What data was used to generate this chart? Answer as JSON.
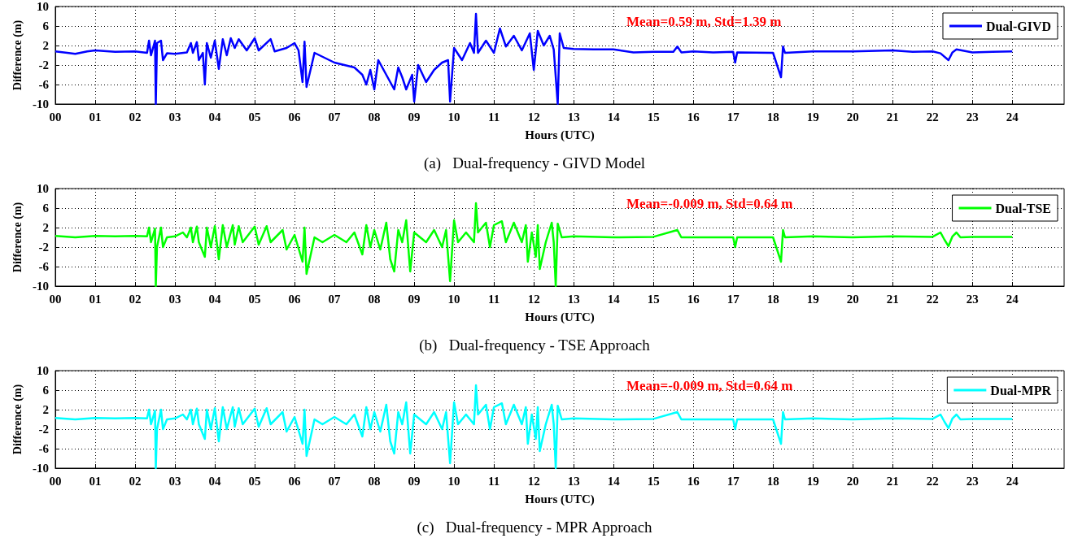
{
  "chart_data": [
    {
      "type": "line",
      "title": "(a)   Dual-frequency - GIVD Model",
      "xlabel": "Hours (UTC)",
      "ylabel": "Difference (m)",
      "annotations": [
        "Mean=0.59 m, Std=1.39 m"
      ],
      "grid": true,
      "legend": "top right",
      "xlim": [
        0,
        25.3
      ],
      "ylim": [
        -10,
        10
      ],
      "yticks": [
        -10,
        -6,
        -2,
        2,
        6,
        10
      ],
      "xticks": [
        {
          "value": 0,
          "label": "00"
        },
        {
          "value": 1,
          "label": "01"
        },
        {
          "value": 2,
          "label": "02"
        },
        {
          "value": 3,
          "label": "03"
        },
        {
          "value": 4,
          "label": "04"
        },
        {
          "value": 5,
          "label": "05"
        },
        {
          "value": 6,
          "label": "06"
        },
        {
          "value": 7,
          "label": "07"
        },
        {
          "value": 8,
          "label": "08"
        },
        {
          "value": 9,
          "label": "09"
        },
        10,
        11,
        12,
        13,
        14,
        15,
        16,
        17,
        18,
        19,
        20,
        21,
        22,
        23,
        24
      ],
      "series": [
        {
          "name": "Dual-GIVD",
          "color": "#0000ff",
          "x": [
            0,
            0.3,
            0.5,
            0.8,
            1.0,
            1.5,
            2.0,
            2.3,
            2.35,
            2.4,
            2.5,
            2.52,
            2.55,
            2.65,
            2.7,
            2.8,
            3.0,
            3.3,
            3.4,
            3.45,
            3.55,
            3.6,
            3.7,
            3.75,
            3.8,
            3.9,
            4.0,
            4.1,
            4.2,
            4.3,
            4.4,
            4.5,
            4.6,
            4.8,
            5.0,
            5.1,
            5.4,
            5.5,
            5.8,
            6.0,
            6.1,
            6.2,
            6.25,
            6.3,
            6.5,
            7.0,
            7.5,
            7.7,
            7.8,
            7.9,
            8.0,
            8.1,
            8.3,
            8.5,
            8.6,
            8.7,
            8.8,
            8.95,
            9.0,
            9.1,
            9.3,
            9.5,
            9.7,
            9.85,
            9.9,
            10.0,
            10.2,
            10.4,
            10.5,
            10.55,
            10.6,
            10.8,
            11.0,
            11.15,
            11.3,
            11.5,
            11.7,
            11.9,
            12.0,
            12.1,
            12.25,
            12.4,
            12.5,
            12.6,
            12.65,
            12.75,
            13.0,
            13.5,
            14.0,
            14.5,
            15.0,
            15.5,
            15.6,
            15.7,
            16.0,
            16.5,
            17.0,
            17.05,
            17.1,
            18.0,
            18.2,
            18.25,
            18.3,
            19.0,
            20.0,
            21.0,
            21.5,
            22.0,
            22.2,
            22.4,
            22.5,
            22.6,
            23.0,
            23.5,
            24.0
          ],
          "values": [
            0.8,
            0.5,
            0.3,
            0.8,
            1.0,
            0.7,
            0.8,
            0.5,
            3,
            0,
            3,
            -10,
            2.5,
            3,
            -1,
            0.4,
            0.3,
            0.6,
            2.5,
            0.5,
            2.7,
            -1,
            0.5,
            -6,
            2.5,
            -0.5,
            3,
            -2.8,
            3.3,
            0,
            3.5,
            1.5,
            3.3,
            1.0,
            3.5,
            1.0,
            3.3,
            0.8,
            1.5,
            2.5,
            1.0,
            -5.5,
            2.8,
            -6.5,
            0.5,
            -1.5,
            -2.5,
            -4,
            -6,
            -3,
            -7,
            -1,
            -4,
            -7,
            -2.5,
            -4.5,
            -7,
            -4,
            -9.5,
            -2,
            -5.5,
            -3,
            -1.5,
            -1,
            -9.5,
            1.5,
            -1,
            2.5,
            0.5,
            8.5,
            0.5,
            3,
            0.5,
            5.5,
            1.8,
            4,
            1.0,
            4.5,
            -3,
            5,
            2.0,
            4,
            1.2,
            -10,
            4.5,
            1.5,
            1.3,
            1.2,
            1.2,
            0.6,
            0.7,
            0.7,
            1.8,
            0.6,
            0.8,
            0.6,
            0.7,
            -1.5,
            0.6,
            0.5,
            -4.5,
            1.8,
            0.5,
            0.8,
            0.8,
            1.0,
            0.7,
            0.8,
            0.4,
            -1,
            0.6,
            1.2,
            0.6,
            0.7,
            0.8
          ]
        }
      ]
    },
    {
      "type": "line",
      "title": "(b)   Dual-frequency - TSE Approach",
      "xlabel": "Hours (UTC)",
      "ylabel": "Difference (m)",
      "annotations": [
        "Mean=-0.009 m, Std=0.64 m"
      ],
      "grid": true,
      "legend": "top right",
      "xlim": [
        0,
        25.3
      ],
      "ylim": [
        -10,
        10
      ],
      "yticks": [
        -10,
        -6,
        -2,
        2,
        6,
        10
      ],
      "xticks": [
        {
          "value": 0,
          "label": "00"
        },
        {
          "value": 1,
          "label": "01"
        },
        {
          "value": 2,
          "label": "02"
        },
        {
          "value": 3,
          "label": "03"
        },
        {
          "value": 4,
          "label": "04"
        },
        {
          "value": 5,
          "label": "05"
        },
        {
          "value": 6,
          "label": "06"
        },
        {
          "value": 7,
          "label": "07"
        },
        {
          "value": 8,
          "label": "08"
        },
        {
          "value": 9,
          "label": "09"
        },
        10,
        11,
        12,
        13,
        14,
        15,
        16,
        17,
        18,
        19,
        20,
        21,
        22,
        23,
        24
      ],
      "series": [
        {
          "name": "Dual-TSE",
          "color": "#00ff00",
          "x": [
            0,
            0.5,
            1.0,
            1.5,
            2.0,
            2.3,
            2.35,
            2.4,
            2.5,
            2.52,
            2.55,
            2.65,
            2.7,
            2.8,
            3.0,
            3.2,
            3.3,
            3.4,
            3.45,
            3.55,
            3.6,
            3.75,
            3.8,
            3.9,
            4.0,
            4.1,
            4.2,
            4.3,
            4.45,
            4.5,
            4.6,
            4.7,
            5.0,
            5.1,
            5.3,
            5.4,
            5.7,
            5.8,
            6.0,
            6.2,
            6.25,
            6.3,
            6.5,
            6.7,
            7.0,
            7.3,
            7.5,
            7.7,
            7.8,
            7.9,
            8.0,
            8.15,
            8.3,
            8.4,
            8.5,
            8.6,
            8.7,
            8.8,
            8.9,
            9.0,
            9.3,
            9.5,
            9.7,
            9.8,
            9.9,
            10.0,
            10.1,
            10.3,
            10.5,
            10.55,
            10.6,
            10.8,
            10.9,
            11.0,
            11.2,
            11.3,
            11.5,
            11.7,
            11.8,
            11.85,
            11.95,
            12.05,
            12.1,
            12.15,
            12.3,
            12.45,
            12.5,
            12.55,
            12.6,
            12.7,
            13.0,
            14.0,
            15.0,
            15.6,
            15.7,
            16.0,
            17.0,
            17.05,
            17.1,
            18.0,
            18.2,
            18.25,
            18.3,
            19,
            20,
            21,
            22,
            22.2,
            22.3,
            22.4,
            22.5,
            22.6,
            22.7,
            23,
            24
          ],
          "values": [
            0.3,
            0,
            0.3,
            0.2,
            0.3,
            0.2,
            2,
            -1,
            1.8,
            -10,
            -2,
            2,
            -2,
            0,
            0.2,
            1,
            0,
            2,
            -1,
            2.2,
            -1,
            -4,
            2,
            -2,
            2.3,
            -4.5,
            2.5,
            -2,
            2.5,
            -1.5,
            2.3,
            -1,
            2.2,
            -1.5,
            2.3,
            -1,
            1.5,
            -2.5,
            0.5,
            -5,
            2,
            -7.5,
            0,
            -1,
            0.5,
            -1,
            1,
            -3.5,
            2.5,
            -2,
            1.5,
            -2.5,
            3,
            -4.5,
            -7,
            1.5,
            -1,
            3.5,
            -7,
            1,
            -1,
            1.5,
            -2,
            1.5,
            -9,
            3.5,
            -1,
            1,
            -1,
            7,
            1,
            3,
            -2,
            2.5,
            3.3,
            -1,
            3,
            -1,
            2.5,
            -5,
            1,
            -4,
            2.5,
            -6.5,
            -1,
            3,
            -1,
            -10,
            2.8,
            0,
            0.2,
            0,
            0.1,
            1.5,
            0,
            0,
            0,
            -2,
            0,
            0,
            -5,
            1.5,
            0,
            0.2,
            0,
            0.2,
            0.1,
            1,
            -0.5,
            -1.8,
            0.2,
            1,
            0,
            0.1,
            0.1
          ]
        }
      ]
    },
    {
      "type": "line",
      "title": "(c)   Dual-frequency - MPR Approach",
      "xlabel": "Hours (UTC)",
      "ylabel": "Difference (m)",
      "annotations": [
        "Mean=-0.009 m, Std=0.64 m"
      ],
      "grid": true,
      "legend": "top right",
      "xlim": [
        0,
        25.3
      ],
      "ylim": [
        -10,
        10
      ],
      "yticks": [
        -10,
        -6,
        -2,
        2,
        6,
        10
      ],
      "xticks": [
        {
          "value": 0,
          "label": "00"
        },
        {
          "value": 1,
          "label": "01"
        },
        {
          "value": 2,
          "label": "02"
        },
        {
          "value": 3,
          "label": "03"
        },
        {
          "value": 4,
          "label": "04"
        },
        {
          "value": 5,
          "label": "05"
        },
        {
          "value": 6,
          "label": "06"
        },
        {
          "value": 7,
          "label": "07"
        },
        {
          "value": 8,
          "label": "08"
        },
        {
          "value": 9,
          "label": "09"
        },
        10,
        11,
        12,
        13,
        14,
        15,
        16,
        17,
        18,
        19,
        20,
        21,
        22,
        23,
        24
      ],
      "series": [
        {
          "name": "Dual-MPR",
          "color": "#00ffff",
          "x": [
            0,
            0.5,
            1.0,
            1.5,
            2.0,
            2.3,
            2.35,
            2.4,
            2.5,
            2.52,
            2.55,
            2.65,
            2.7,
            2.8,
            3.0,
            3.2,
            3.3,
            3.4,
            3.45,
            3.55,
            3.6,
            3.75,
            3.8,
            3.9,
            4.0,
            4.1,
            4.2,
            4.3,
            4.45,
            4.5,
            4.6,
            4.7,
            5.0,
            5.1,
            5.3,
            5.4,
            5.7,
            5.8,
            6.0,
            6.2,
            6.25,
            6.3,
            6.5,
            6.7,
            7.0,
            7.3,
            7.5,
            7.7,
            7.8,
            7.9,
            8.0,
            8.15,
            8.3,
            8.4,
            8.5,
            8.6,
            8.7,
            8.8,
            8.9,
            9.0,
            9.3,
            9.5,
            9.7,
            9.8,
            9.9,
            10.0,
            10.1,
            10.3,
            10.5,
            10.55,
            10.6,
            10.8,
            10.9,
            11.0,
            11.2,
            11.3,
            11.5,
            11.7,
            11.8,
            11.85,
            11.95,
            12.05,
            12.1,
            12.15,
            12.3,
            12.45,
            12.5,
            12.55,
            12.6,
            12.7,
            13.0,
            14.0,
            15.0,
            15.6,
            15.7,
            16.0,
            17.0,
            17.05,
            17.1,
            18.0,
            18.2,
            18.25,
            18.3,
            19,
            20,
            21,
            22,
            22.2,
            22.3,
            22.4,
            22.5,
            22.6,
            22.7,
            23,
            24
          ],
          "values": [
            0.3,
            0,
            0.3,
            0.2,
            0.3,
            0.2,
            2,
            -1,
            1.8,
            -10,
            -2,
            2,
            -2,
            0,
            0.2,
            1,
            0,
            2,
            -1,
            2.2,
            -1,
            -4,
            2,
            -2,
            2.3,
            -4.5,
            2.5,
            -2,
            2.5,
            -1.5,
            2.3,
            -1,
            2.2,
            -1.5,
            2.3,
            -1,
            1.5,
            -2.5,
            0.5,
            -5,
            2,
            -7.5,
            0,
            -1,
            0.5,
            -1,
            1,
            -3.5,
            2.5,
            -2,
            1.5,
            -2.5,
            3,
            -4.5,
            -7,
            1.5,
            -1,
            3.5,
            -7,
            1,
            -1,
            1.5,
            -2,
            1.5,
            -9,
            3.5,
            -1,
            1,
            -1,
            7,
            1,
            3,
            -2,
            2.5,
            3.3,
            -1,
            3,
            -1,
            2.5,
            -5,
            1,
            -4,
            2.5,
            -6.5,
            -1,
            3,
            -1,
            -10,
            2.8,
            0,
            0.2,
            0,
            0.1,
            1.5,
            0,
            0,
            0,
            -2,
            0,
            0,
            -5,
            1.5,
            0,
            0.2,
            0,
            0.2,
            0.1,
            1,
            -0.5,
            -1.8,
            0.2,
            1,
            0,
            0.1,
            0.1
          ]
        }
      ]
    }
  ]
}
